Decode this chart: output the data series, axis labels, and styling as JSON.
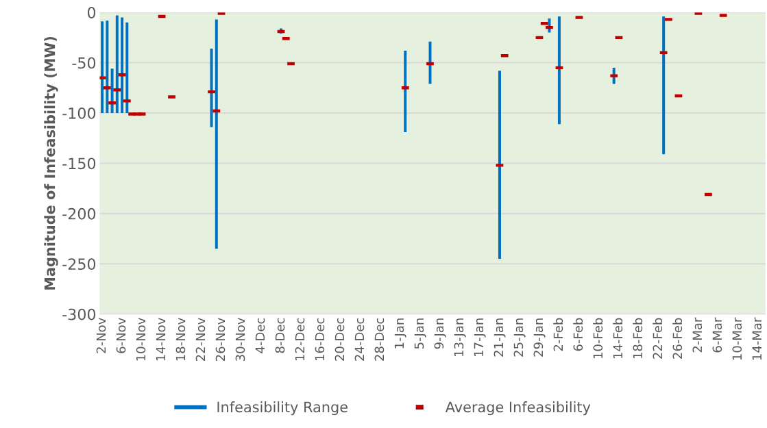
{
  "chart_data": {
    "type": "bar",
    "ylabel": "Magnitude of Infeasibility (MW)",
    "ylim": [
      -300,
      0
    ],
    "yticks": [
      -300,
      -250,
      -200,
      -150,
      -100,
      -50,
      0
    ],
    "categories": [
      "2-Nov",
      null,
      null,
      null,
      "6-Nov",
      null,
      null,
      null,
      "10-Nov",
      null,
      null,
      null,
      "14-Nov",
      null,
      null,
      null,
      "18-Nov",
      null,
      null,
      null,
      "22-Nov",
      null,
      null,
      null,
      "26-Nov",
      null,
      null,
      null,
      "30-Nov",
      null,
      null,
      null,
      "4-Dec",
      null,
      null,
      null,
      "8-Dec",
      null,
      null,
      null,
      "12-Dec",
      null,
      null,
      null,
      "16-Dec",
      null,
      null,
      null,
      "20-Dec",
      null,
      null,
      null,
      "24-Dec",
      null,
      null,
      null,
      "28-Dec",
      null,
      null,
      null,
      "1-Jan",
      null,
      null,
      null,
      "5-Jan",
      null,
      null,
      null,
      "9-Jan",
      null,
      null,
      null,
      "13-Jan",
      null,
      null,
      null,
      "17-Jan",
      null,
      null,
      null,
      "21-Jan",
      null,
      null,
      null,
      "25-Jan",
      null,
      null,
      null,
      "29-Jan",
      null,
      null,
      null,
      "2-Feb",
      null,
      null,
      null,
      "6-Feb",
      null,
      null,
      null,
      "10-Feb",
      null,
      null,
      null,
      "14-Feb",
      null,
      null,
      null,
      "18-Feb",
      null,
      null,
      null,
      "22-Feb",
      null,
      null,
      null,
      "26-Feb",
      null,
      null,
      null,
      "2-Mar",
      null,
      null,
      null,
      "6-Mar",
      null,
      null,
      null,
      "10-Mar",
      null,
      null,
      null,
      "14-Mar",
      null
    ],
    "grid": "y",
    "legend": "bottom",
    "series": [
      {
        "name": "Infeasibility Range",
        "color": "#0070c0",
        "base": [
          -100,
          -100,
          -100,
          -100,
          -100,
          -100,
          null,
          null,
          null,
          null,
          null,
          null,
          null,
          null,
          null,
          null,
          null,
          null,
          null,
          null,
          null,
          null,
          -114,
          -235,
          null,
          null,
          null,
          null,
          null,
          null,
          null,
          null,
          null,
          null,
          null,
          null,
          -21,
          null,
          null,
          null,
          null,
          null,
          null,
          null,
          null,
          null,
          null,
          null,
          null,
          null,
          null,
          null,
          null,
          null,
          null,
          null,
          null,
          null,
          null,
          null,
          null,
          -119,
          null,
          null,
          null,
          null,
          -71,
          null,
          null,
          null,
          null,
          null,
          null,
          null,
          null,
          null,
          null,
          null,
          null,
          null,
          -245,
          null,
          null,
          null,
          null,
          null,
          null,
          null,
          null,
          null,
          -20,
          null,
          -111,
          null,
          null,
          null,
          null,
          null,
          null,
          null,
          null,
          null,
          null,
          -71,
          null,
          null,
          null,
          null,
          null,
          null,
          null,
          null,
          null,
          -141,
          null,
          null,
          null,
          null,
          null,
          null,
          null,
          null,
          null,
          null,
          null,
          null,
          null,
          null,
          null,
          null,
          null,
          null,
          null,
          null
        ],
        "values": [
          91,
          92,
          44,
          97,
          95,
          90,
          null,
          null,
          null,
          null,
          null,
          null,
          null,
          null,
          null,
          null,
          null,
          null,
          null,
          null,
          null,
          null,
          78,
          228,
          null,
          null,
          null,
          null,
          null,
          null,
          null,
          null,
          null,
          null,
          null,
          null,
          5,
          null,
          null,
          null,
          null,
          null,
          null,
          null,
          null,
          null,
          null,
          null,
          null,
          null,
          null,
          null,
          null,
          null,
          null,
          null,
          null,
          null,
          null,
          null,
          null,
          81,
          null,
          null,
          null,
          null,
          42,
          null,
          null,
          null,
          null,
          null,
          null,
          null,
          null,
          null,
          null,
          null,
          null,
          null,
          187,
          null,
          null,
          null,
          null,
          null,
          null,
          null,
          null,
          null,
          14,
          null,
          107,
          null,
          null,
          null,
          null,
          null,
          null,
          null,
          null,
          null,
          null,
          16,
          null,
          null,
          null,
          null,
          null,
          null,
          null,
          null,
          null,
          137,
          null,
          null,
          null,
          null,
          null,
          null,
          null,
          null,
          null,
          null,
          null,
          null,
          null,
          null,
          null,
          null,
          null,
          null,
          null,
          null
        ]
      },
      {
        "name": "Average Infeasibility",
        "type": "scatter",
        "color": "#c00000",
        "values": [
          -65,
          -75,
          -90,
          -77,
          -62,
          -88,
          -101,
          -101,
          -101,
          null,
          null,
          null,
          -4,
          null,
          -84,
          null,
          null,
          null,
          null,
          null,
          null,
          null,
          -79,
          -98,
          -1,
          null,
          null,
          null,
          null,
          null,
          null,
          null,
          null,
          null,
          null,
          null,
          -19,
          -26,
          -51,
          null,
          null,
          null,
          null,
          null,
          null,
          null,
          null,
          null,
          null,
          null,
          null,
          null,
          null,
          null,
          null,
          null,
          null,
          null,
          null,
          null,
          null,
          -75,
          null,
          null,
          null,
          null,
          -51,
          null,
          null,
          null,
          null,
          null,
          null,
          null,
          null,
          null,
          null,
          null,
          null,
          null,
          -152,
          -43,
          null,
          null,
          null,
          null,
          null,
          null,
          -25,
          -11,
          -15,
          null,
          -55,
          null,
          null,
          null,
          -5,
          null,
          null,
          null,
          null,
          null,
          null,
          -63,
          -25,
          null,
          null,
          null,
          null,
          null,
          null,
          null,
          null,
          -40,
          -7,
          null,
          -83,
          null,
          null,
          null,
          -1,
          null,
          -181,
          null,
          null,
          -3,
          null,
          null,
          null,
          null,
          null,
          null,
          null,
          null
        ]
      }
    ]
  }
}
